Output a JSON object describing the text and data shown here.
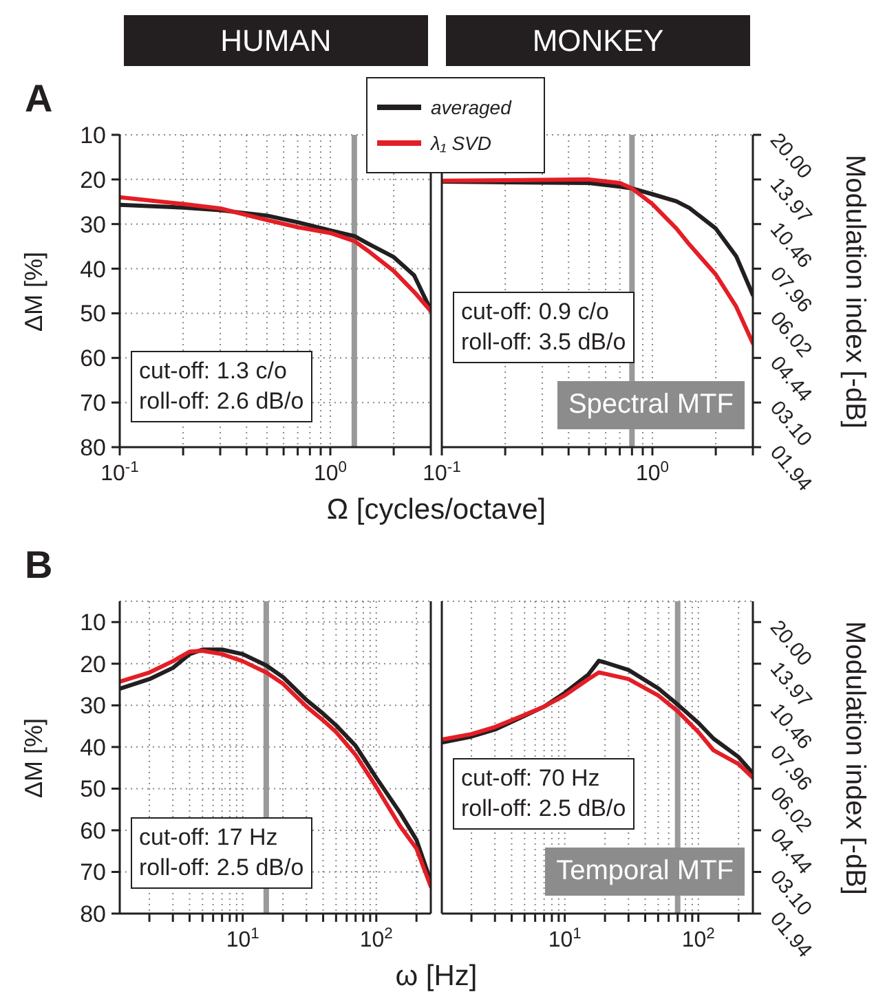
{
  "chart_data": [
    {
      "type": "line",
      "title": "HUMAN",
      "xlabel": "Ω [cycles/octave]",
      "ylabel": "ΔM [%]",
      "log": "x",
      "grid": true,
      "marker": "none",
      "line_style": "solid",
      "x": [
        0.1,
        0.2,
        0.3,
        0.5,
        0.7,
        1,
        1.3,
        1.5,
        2,
        2.5,
        3
      ],
      "series": [
        {
          "color": "#231f20",
          "values": [
            25.7,
            26.3,
            26.9,
            28.1,
            29.6,
            31.4,
            32.7,
            34.3,
            37.4,
            41.5,
            49.3
          ]
        },
        {
          "color": "#e41e26",
          "values": [
            24,
            25.5,
            26.5,
            29.1,
            30.7,
            32,
            33.8,
            35.9,
            40.5,
            45.2,
            49.5
          ]
        }
      ],
      "xlim": [
        0.1,
        3
      ],
      "xticks": [
        {
          "value": 0.1,
          "label": "10$^{-1}$"
        },
        {
          "value": 0.2,
          "label": null
        },
        {
          "value": 0.3,
          "label": null
        },
        {
          "value": 0.4,
          "label": null
        },
        {
          "value": 0.5,
          "label": null
        },
        {
          "value": 0.6,
          "label": null
        },
        {
          "value": 0.7,
          "label": null
        },
        {
          "value": 0.8,
          "label": null
        },
        {
          "value": 0.9,
          "label": null
        },
        {
          "value": 1,
          "label": "10$^{0}$"
        },
        {
          "value": 2,
          "label": null
        },
        {
          "value": 3,
          "label": null
        }
      ],
      "ylim": [
        80,
        10
      ],
      "yticks": [
        10,
        20,
        30,
        40,
        50,
        60,
        70,
        80
      ],
      "ref_lines": [
        {
          "axis": "x",
          "value": 1.3,
          "color": "#999999"
        }
      ],
      "annotations": [
        "A",
        "cut-off: 1.3 c/o\nroll-off: 2.6 dB/o"
      ]
    },
    {
      "type": "line",
      "title": "MONKEY",
      "y2label": "Modulation index [-dB]",
      "log": "x",
      "grid": true,
      "marker": "none",
      "line_style": "solid",
      "legend": "top left",
      "tick_labels": "x",
      "x": [
        0.1,
        0.5,
        0.7,
        0.8,
        1,
        1.3,
        1.5,
        2,
        2.5,
        3
      ],
      "series": [
        {
          "name": "averaged",
          "color": "#231f20",
          "values": [
            20.5,
            20.8,
            21.6,
            22,
            23.3,
            24.9,
            26.4,
            31,
            37.2,
            45.9
          ]
        },
        {
          "name": "λ₁ SVD",
          "color": "#e41e26",
          "values": [
            20.3,
            20,
            20.8,
            22,
            25.5,
            31,
            34.6,
            41.3,
            48.5,
            56.7
          ]
        }
      ],
      "xlim": [
        0.1,
        3
      ],
      "xticks": [
        {
          "value": 0.1,
          "label": "10$^{-1}$"
        },
        {
          "value": 0.2,
          "label": null
        },
        {
          "value": 0.3,
          "label": null
        },
        {
          "value": 0.4,
          "label": null
        },
        {
          "value": 0.5,
          "label": null
        },
        {
          "value": 0.6,
          "label": null
        },
        {
          "value": 0.7,
          "label": null
        },
        {
          "value": 0.8,
          "label": null
        },
        {
          "value": 0.9,
          "label": null
        },
        {
          "value": 1,
          "label": "10$^{0}$"
        },
        {
          "value": 2,
          "label": null
        },
        {
          "value": 3,
          "label": null
        }
      ],
      "ylim": [
        80,
        10
      ],
      "yticks": [
        10,
        20,
        30,
        40,
        50,
        60,
        70,
        80
      ],
      "y2_categories": [
        "20.00",
        "13.97",
        "10.46",
        "07.96",
        "06.02",
        "04.44",
        "03.10",
        "01.94"
      ],
      "ref_lines": [
        {
          "axis": "x",
          "value": 0.8,
          "color": "#999999"
        }
      ],
      "annotations": [
        "cut-off: 0.9 c/o\nroll-off: 3.5 dB/o",
        "Spectral MTF"
      ]
    },
    {
      "type": "line",
      "xlabel": "ω [Hz]",
      "ylabel": "ΔM [%]",
      "log": "x",
      "grid": true,
      "marker": "none",
      "line_style": "solid",
      "x": [
        1.2,
        2,
        3,
        4,
        5,
        7,
        10,
        15,
        20,
        30,
        40,
        50,
        70,
        100,
        150,
        200,
        256
      ],
      "series": [
        {
          "color": "#231f20",
          "values": [
            26,
            23.7,
            21,
            17.7,
            16.6,
            16.6,
            17.7,
            20.4,
            23.2,
            28.7,
            32,
            34.8,
            39.7,
            47.4,
            55.7,
            62.3,
            72.3
          ]
        },
        {
          "color": "#e41e26",
          "values": [
            24.3,
            22.1,
            19.4,
            17.1,
            16.9,
            17.7,
            19.4,
            22.1,
            24.8,
            30.3,
            33.6,
            36.4,
            41.9,
            49.6,
            58.9,
            64.4,
            73.5
          ]
        }
      ],
      "xlim": [
        1.2,
        256
      ],
      "xticks": [
        {
          "value": 2,
          "label": null
        },
        {
          "value": 3,
          "label": null
        },
        {
          "value": 4,
          "label": null
        },
        {
          "value": 5,
          "label": null
        },
        {
          "value": 6,
          "label": null
        },
        {
          "value": 7,
          "label": null
        },
        {
          "value": 8,
          "label": null
        },
        {
          "value": 9,
          "label": null
        },
        {
          "value": 10,
          "label": "10$^{1}$"
        },
        {
          "value": 20,
          "label": null
        },
        {
          "value": 30,
          "label": null
        },
        {
          "value": 40,
          "label": null
        },
        {
          "value": 50,
          "label": null
        },
        {
          "value": 60,
          "label": null
        },
        {
          "value": 70,
          "label": null
        },
        {
          "value": 80,
          "label": null
        },
        {
          "value": 90,
          "label": null
        },
        {
          "value": 100,
          "label": "10$^{2}$"
        },
        {
          "value": 200,
          "label": null
        }
      ],
      "ylim": [
        80,
        5
      ],
      "yticks": [
        10,
        20,
        30,
        40,
        50,
        60,
        70,
        80
      ],
      "ref_lines": [
        {
          "axis": "x",
          "value": 15,
          "color": "#999999"
        }
      ],
      "annotations": [
        "B",
        "cut-off: 17 Hz\nroll-off: 2.5 dB/o"
      ]
    },
    {
      "type": "line",
      "y2label": "Modulation index [-dB]",
      "log": "x",
      "grid": true,
      "marker": "none",
      "line_style": "solid",
      "tick_labels": "x",
      "x": [
        1.2,
        2,
        3,
        5,
        7,
        10,
        15,
        18,
        20,
        30,
        50,
        70,
        100,
        130,
        200,
        256
      ],
      "series": [
        {
          "color": "#231f20",
          "values": [
            38.9,
            37.5,
            35.8,
            32.5,
            30.3,
            27,
            22.6,
            19.3,
            19.7,
            21.5,
            25.9,
            29.8,
            34.2,
            38,
            42.4,
            46.3
          ]
        },
        {
          "color": "#e41e26",
          "values": [
            38.2,
            36.9,
            35.2,
            32.3,
            30.3,
            27.6,
            23.7,
            22.1,
            22.4,
            23.7,
            27.6,
            31.4,
            36.4,
            40.8,
            44.1,
            47.4
          ]
        }
      ],
      "xlim": [
        1.2,
        256
      ],
      "xticks": [
        {
          "value": 2,
          "label": null
        },
        {
          "value": 3,
          "label": null
        },
        {
          "value": 4,
          "label": null
        },
        {
          "value": 5,
          "label": null
        },
        {
          "value": 6,
          "label": null
        },
        {
          "value": 7,
          "label": null
        },
        {
          "value": 8,
          "label": null
        },
        {
          "value": 9,
          "label": null
        },
        {
          "value": 10,
          "label": "10$^{1}$"
        },
        {
          "value": 20,
          "label": null
        },
        {
          "value": 30,
          "label": null
        },
        {
          "value": 40,
          "label": null
        },
        {
          "value": 50,
          "label": null
        },
        {
          "value": 60,
          "label": null
        },
        {
          "value": 70,
          "label": null
        },
        {
          "value": 80,
          "label": null
        },
        {
          "value": 90,
          "label": null
        },
        {
          "value": 100,
          "label": "10$^{2}$"
        },
        {
          "value": 200,
          "label": null
        }
      ],
      "ylim": [
        80,
        5
      ],
      "yticks": [
        10,
        20,
        30,
        40,
        50,
        60,
        70,
        80
      ],
      "y2_categories": [
        "20.00",
        "13.97",
        "10.46",
        "07.96",
        "06.02",
        "04.44",
        "03.10",
        "01.94"
      ],
      "ref_lines": [
        {
          "axis": "x",
          "value": 70,
          "color": "#999999"
        }
      ],
      "annotations": [
        "cut-off: 70 Hz\nroll-off: 2.5 dB/o",
        "Temporal MTF"
      ]
    }
  ]
}
